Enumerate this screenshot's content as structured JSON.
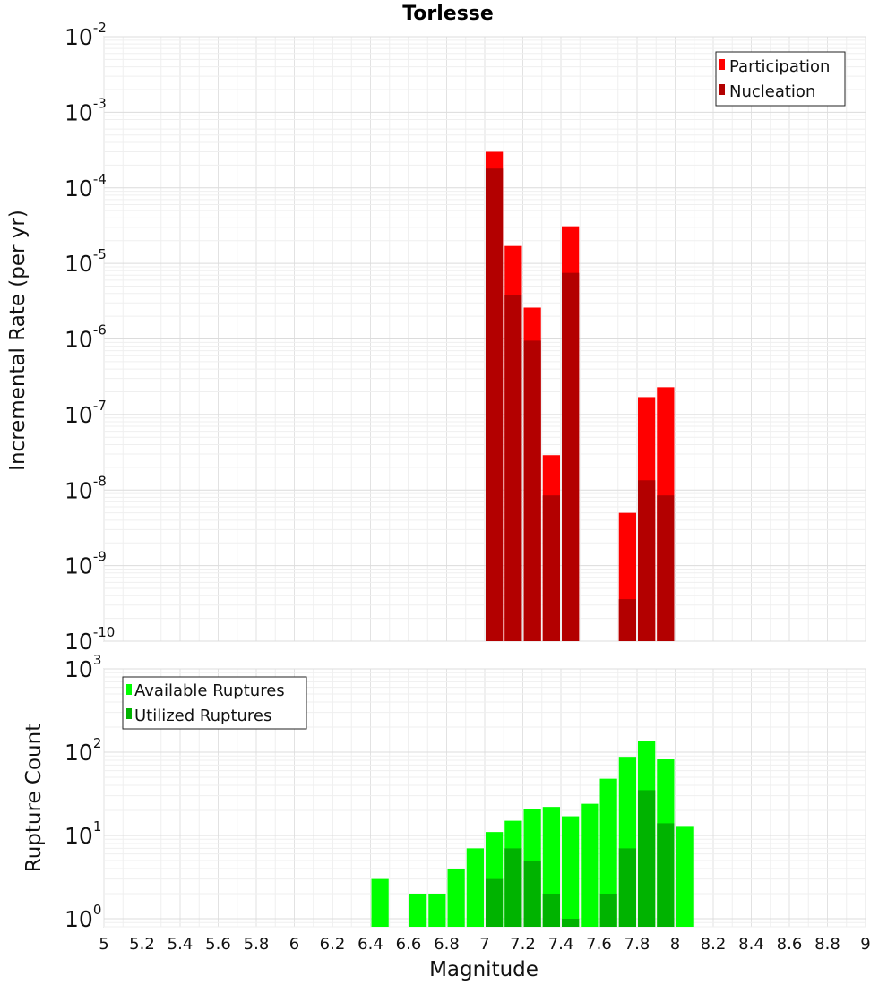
{
  "chart_data": [
    {
      "type": "bar",
      "title": "Torlesse",
      "xlabel": "",
      "ylabel": "Incremental Rate (per yr)",
      "yscale": "log",
      "ylim": [
        1e-10,
        0.01
      ],
      "xlim": [
        5,
        9
      ],
      "bin_width": 0.1,
      "legend_position": "top-right",
      "yticks": [
        {
          "base": "10",
          "exp": "-10",
          "value": 1e-10
        },
        {
          "base": "10",
          "exp": "-9",
          "value": 1e-09
        },
        {
          "base": "10",
          "exp": "-8",
          "value": 1e-08
        },
        {
          "base": "10",
          "exp": "-7",
          "value": 1e-07
        },
        {
          "base": "10",
          "exp": "-6",
          "value": 1e-06
        },
        {
          "base": "10",
          "exp": "-5",
          "value": 1e-05
        },
        {
          "base": "10",
          "exp": "-4",
          "value": 0.0001
        },
        {
          "base": "10",
          "exp": "-3",
          "value": 0.001
        },
        {
          "base": "10",
          "exp": "-2",
          "value": 0.01
        }
      ],
      "series": [
        {
          "name": "Participation",
          "color": "#ff0000",
          "x": [
            7.05,
            7.15,
            7.25,
            7.35,
            7.45,
            7.75,
            7.85,
            7.95
          ],
          "values": [
            0.0003,
            1.7e-05,
            2.6e-06,
            2.9e-08,
            3.1e-05,
            5e-09,
            1.7e-07,
            2.3e-07
          ]
        },
        {
          "name": "Nucleation",
          "color": "#b30000",
          "x": [
            7.05,
            7.15,
            7.25,
            7.35,
            7.45,
            7.75,
            7.85,
            7.95
          ],
          "values": [
            0.00018,
            3.8e-06,
            9.5e-07,
            8.5e-09,
            7.5e-06,
            3.6e-10,
            1.35e-08,
            8.5e-09
          ]
        }
      ]
    },
    {
      "type": "bar",
      "title": "",
      "xlabel": "Magnitude",
      "ylabel": "Rupture Count",
      "yscale": "log",
      "ylim": [
        0.8,
        1000
      ],
      "xlim": [
        5,
        9
      ],
      "bin_width": 0.1,
      "legend_position": "top-left",
      "xticks": [
        "5",
        "5.2",
        "5.4",
        "5.6",
        "5.8",
        "6",
        "6.2",
        "6.4",
        "6.6",
        "6.8",
        "7",
        "7.2",
        "7.4",
        "7.6",
        "7.8",
        "8",
        "8.2",
        "8.4",
        "8.6",
        "8.8",
        "9"
      ],
      "yticks": [
        {
          "base": "10",
          "exp": "0",
          "value": 1
        },
        {
          "base": "10",
          "exp": "1",
          "value": 10
        },
        {
          "base": "10",
          "exp": "2",
          "value": 100
        },
        {
          "base": "10",
          "exp": "3",
          "value": 1000
        }
      ],
      "series": [
        {
          "name": "Available Ruptures",
          "color": "#00ff00",
          "x": [
            6.45,
            6.65,
            6.75,
            6.85,
            6.95,
            7.05,
            7.15,
            7.25,
            7.35,
            7.45,
            7.55,
            7.65,
            7.75,
            7.85,
            7.95,
            8.05
          ],
          "values": [
            3,
            2,
            2,
            4,
            7,
            11,
            15,
            21,
            22,
            17,
            24,
            48,
            88,
            135,
            82,
            13
          ]
        },
        {
          "name": "Utilized Ruptures",
          "color": "#00b300",
          "x": [
            7.05,
            7.15,
            7.25,
            7.35,
            7.45,
            7.65,
            7.75,
            7.85,
            7.95
          ],
          "values": [
            3,
            7,
            5,
            2,
            1,
            2,
            7,
            35,
            14
          ]
        }
      ]
    }
  ]
}
